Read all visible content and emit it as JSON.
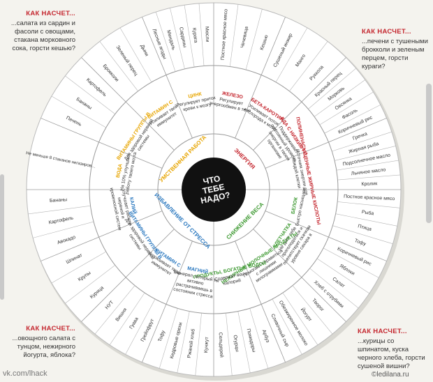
{
  "center": {
    "title_line1": "ЧТО",
    "title_line2": "ТЕБЕ",
    "title_line3": "НАДО?"
  },
  "categories": [
    {
      "label": "ЭНЕРГИЯ",
      "color": "#c4262e"
    },
    {
      "label": "УМСТВЕННАЯ РАБОТА",
      "color": "#e7a500"
    },
    {
      "label": "ИЗБАВЛЕНИЕ ОТ СТРЕССА",
      "color": "#2a78bf"
    },
    {
      "label": "СНИЖЕНИЕ ВЕСА",
      "color": "#3f9a33"
    }
  ],
  "sectors": [
    {
      "nutrient": "ЖЕЛЕЗО",
      "desc": "Регулирует энергообмен в теле",
      "color": "#c4262e",
      "foods": [
        "Постное красное мясо",
        "Чечевица",
        "Кешью"
      ]
    },
    {
      "nutrient": "БЕТА-КАРОТИН",
      "desc": "Усиливает поток кислорода к мозгу",
      "color": "#c4262e",
      "foods": [
        "Сушеный инжир",
        "Манго",
        "Руккола"
      ]
    },
    {
      "nutrient": "ЕДА С НИЗКИМ ГИ",
      "desc": "Поддерживает постоянный уровень энергии в твоем организме",
      "color": "#c4262e",
      "foods": [
        "Красный перец",
        "Морковь",
        "Овсянка",
        "Фасоль",
        "Коричневый рис"
      ]
    },
    {
      "nutrient": "ПОЛИНЕНАСЫЩЕННЫЕ ЖИРНЫЕ КИСЛОТЫ",
      "desc": "Источник энергии для каждой клетки",
      "color": "#c4262e",
      "foods": [
        "Гречка",
        "Жирная рыба",
        "Подсолнечное масло",
        "Льняное масло",
        "Кролик"
      ]
    },
    {
      "nutrient": "БЕЛОК",
      "desc": "Быстро насыщает",
      "color": "#3f9a33",
      "foods": [
        "Постное красное мясо",
        "Рыба",
        "Птица",
        "Тофу"
      ]
    },
    {
      "nutrient": "КЛЕТЧАТКА",
      "desc": "Не дает тебе проголодаться и препятствует скачкам уровня сахара в крови",
      "color": "#3f9a33",
      "foods": [
        "Коричневый рис",
        "Яблоки",
        "Салат",
        "Хлеб с отрубями"
      ]
    },
    {
      "nutrient": "НЕЖИРНЫЕ МОЛОЧНЫЕ ПРОДУКТЫ",
      "desc": "Помогают справиться с лишними килограммами",
      "color": "#3f9a33",
      "foods": [
        "Творог",
        "Йогурт",
        "Обезжиренное молоко",
        "Сливочный сыр"
      ]
    },
    {
      "nutrient": "ПРОДУКТЫ, БОГАТЫЕ ВОДОЙ",
      "desc": "Содержат мало калорий",
      "color": "#3f9a33",
      "foods": [
        "Арбуз",
        "Помидоры",
        "Огурцы",
        "Сельдерей"
      ]
    },
    {
      "nutrient": "МАГНИЙ",
      "desc": "Минерал, который ты активно растрачиваешь в состоянии стресса",
      "color": "#2a78bf",
      "foods": [
        "Кунжут",
        "Ржаной хлеб",
        "Кедровые орехи",
        "Тофу"
      ]
    },
    {
      "nutrient": "ВИТАМИН С",
      "desc": "Успокаивает твою иммунитет",
      "color": "#2a78bf",
      "foods": [
        "Грейпфрут",
        "Гуава",
        "Вишня",
        "НУТ"
      ]
    },
    {
      "nutrient": "ВИТАМИНЫ ГРУППЫ В",
      "desc": "Для здоровой нервной системы",
      "color": "#2a78bf",
      "foods": [
        "Курица",
        "Крупы",
        "Шпинат"
      ]
    },
    {
      "nutrient": "КАЛИЙ",
      "desc": "Улучшает работу нервной и кровеносной систем",
      "color": "#2a78bf",
      "foods": [
        "Авокадо",
        "Картофель",
        "Бананы"
      ]
    },
    {
      "nutrient": "ВОДА",
      "desc": "На 10% улучшает работу твоего мозга",
      "color": "#e7a500",
      "foods": [
        "Не меньше 8 стаканов негазированной минеральной воды в день"
      ]
    },
    {
      "nutrient": "ВИТАМИНЫ ГРУППЫ В",
      "desc": "Для здоровой нервной системы",
      "color": "#e7a500",
      "foods": [
        "Печень",
        "Бананы",
        "Картофель"
      ]
    },
    {
      "nutrient": "ВИТАМИН С",
      "desc": "Усиливает твой иммунитет",
      "color": "#e7a500",
      "foods": [
        "Брокколи",
        "Зеленый перец",
        "Дыни"
      ]
    },
    {
      "nutrient": "ЦИНК",
      "desc": "Регулирует приток крови к мозгу",
      "color": "#e7a500",
      "foods": [
        "Лесные ягоды",
        "Миндаль",
        "Сардины",
        "Курага",
        "Мюсли"
      ]
    }
  ],
  "corners": {
    "top_left": {
      "head": "КАК НАСЧЕТ...",
      "text": "...салата из сардин и фасоли с овощами, стакана морковного сока, горсти кешью?"
    },
    "top_right": {
      "head": "КАК НАСЧЕТ...",
      "text": "...печени с тушеными брокколи и зеленым перцем, горсти кураги?"
    },
    "bottom_left": {
      "head": "КАК НАСЧЕТ...",
      "text": "...овощного салата с тунцом, нежирного йогурта, яблока?"
    },
    "bottom_right": {
      "head": "КАК НАСЧЕТ...",
      "text": "...курицы со шпинатом, куска черного хлеба, горсти сушеной вишни?"
    }
  },
  "credits": {
    "left": "vk.com/lhack",
    "right": "©ledilana.ru"
  }
}
